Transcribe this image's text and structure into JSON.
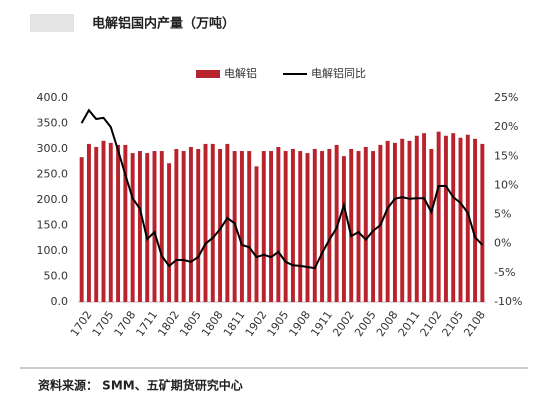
{
  "chart_data": {
    "type": "bar_line",
    "title": "电解铝国内产量（万吨）",
    "source": "资料来源： SMM、五矿期货研究中心",
    "categories": [
      "1702",
      null,
      null,
      "1705",
      null,
      null,
      "1708",
      null,
      null,
      "1711",
      null,
      null,
      "1802",
      null,
      null,
      "1805",
      null,
      null,
      "1808",
      null,
      null,
      "1811",
      null,
      null,
      "1902",
      null,
      null,
      "1905",
      null,
      null,
      "1908",
      null,
      null,
      "1911",
      null,
      null,
      "2002",
      null,
      null,
      "2005",
      null,
      null,
      "2008",
      null,
      null,
      "2011",
      null,
      null,
      "2102",
      null,
      null,
      "2105",
      null,
      null,
      "2108",
      null
    ],
    "series": [
      {
        "name": "电解铝",
        "type": "bar",
        "color": "#b8232d",
        "values": [
          284,
          310,
          304,
          316,
          312,
          308,
          308,
          292,
          296,
          292,
          296,
          296,
          272,
          300,
          296,
          304,
          300,
          310,
          310,
          300,
          310,
          296,
          296,
          296,
          266,
          296,
          296,
          304,
          296,
          300,
          296,
          292,
          300,
          296,
          300,
          308,
          286,
          300,
          296,
          304,
          296,
          308,
          316,
          312,
          320,
          316,
          326,
          331,
          300,
          334,
          326,
          331,
          322,
          328,
          320,
          310
        ]
      },
      {
        "name": "电解铝同比",
        "type": "line",
        "axis": "y2",
        "color": "#000000",
        "values": [
          20.7,
          22.9,
          21.4,
          21.6,
          20,
          16,
          11.8,
          7.8,
          6,
          0.8,
          2,
          -2.1,
          -3.8,
          -2.8,
          -2.8,
          -3.1,
          -2.3,
          0,
          1,
          2.5,
          4.4,
          3.5,
          -0.2,
          -0.6,
          -2.3,
          -1.9,
          -2.3,
          -1.4,
          -3.1,
          -3.7,
          -3.8,
          -4,
          -4.2,
          -1.6,
          0.7,
          2.7,
          6.6,
          1.3,
          2,
          0.7,
          2.2,
          3.2,
          6.1,
          7.7,
          8,
          7.7,
          7.8,
          7.8,
          5.4,
          9.9,
          9.9,
          8,
          7,
          5.3,
          1.1,
          -0.2
        ]
      }
    ],
    "ylim": [
      0,
      400
    ],
    "yticks": [
      {
        "value": 0,
        "label": "0.0"
      },
      {
        "value": 50,
        "label": "50.0"
      },
      {
        "value": 100,
        "label": "100.0"
      },
      {
        "value": 150,
        "label": "150.0"
      },
      {
        "value": 200,
        "label": "200.0"
      },
      {
        "value": 250,
        "label": "250.0"
      },
      {
        "value": 300,
        "label": "300.0"
      },
      {
        "value": 350,
        "label": "350.0"
      },
      {
        "value": 400,
        "label": "400.0"
      }
    ],
    "y2lim": [
      -10,
      25
    ],
    "y2ticks": [
      {
        "value": -10,
        "label": "-10%"
      },
      {
        "value": -5,
        "label": "-5%"
      },
      {
        "value": 0,
        "label": "0%"
      },
      {
        "value": 5,
        "label": "5%"
      },
      {
        "value": 10,
        "label": "10%"
      },
      {
        "value": 15,
        "label": "15%"
      },
      {
        "value": 20,
        "label": "20%"
      },
      {
        "value": 25,
        "label": "25%"
      }
    ],
    "legend": "top"
  }
}
